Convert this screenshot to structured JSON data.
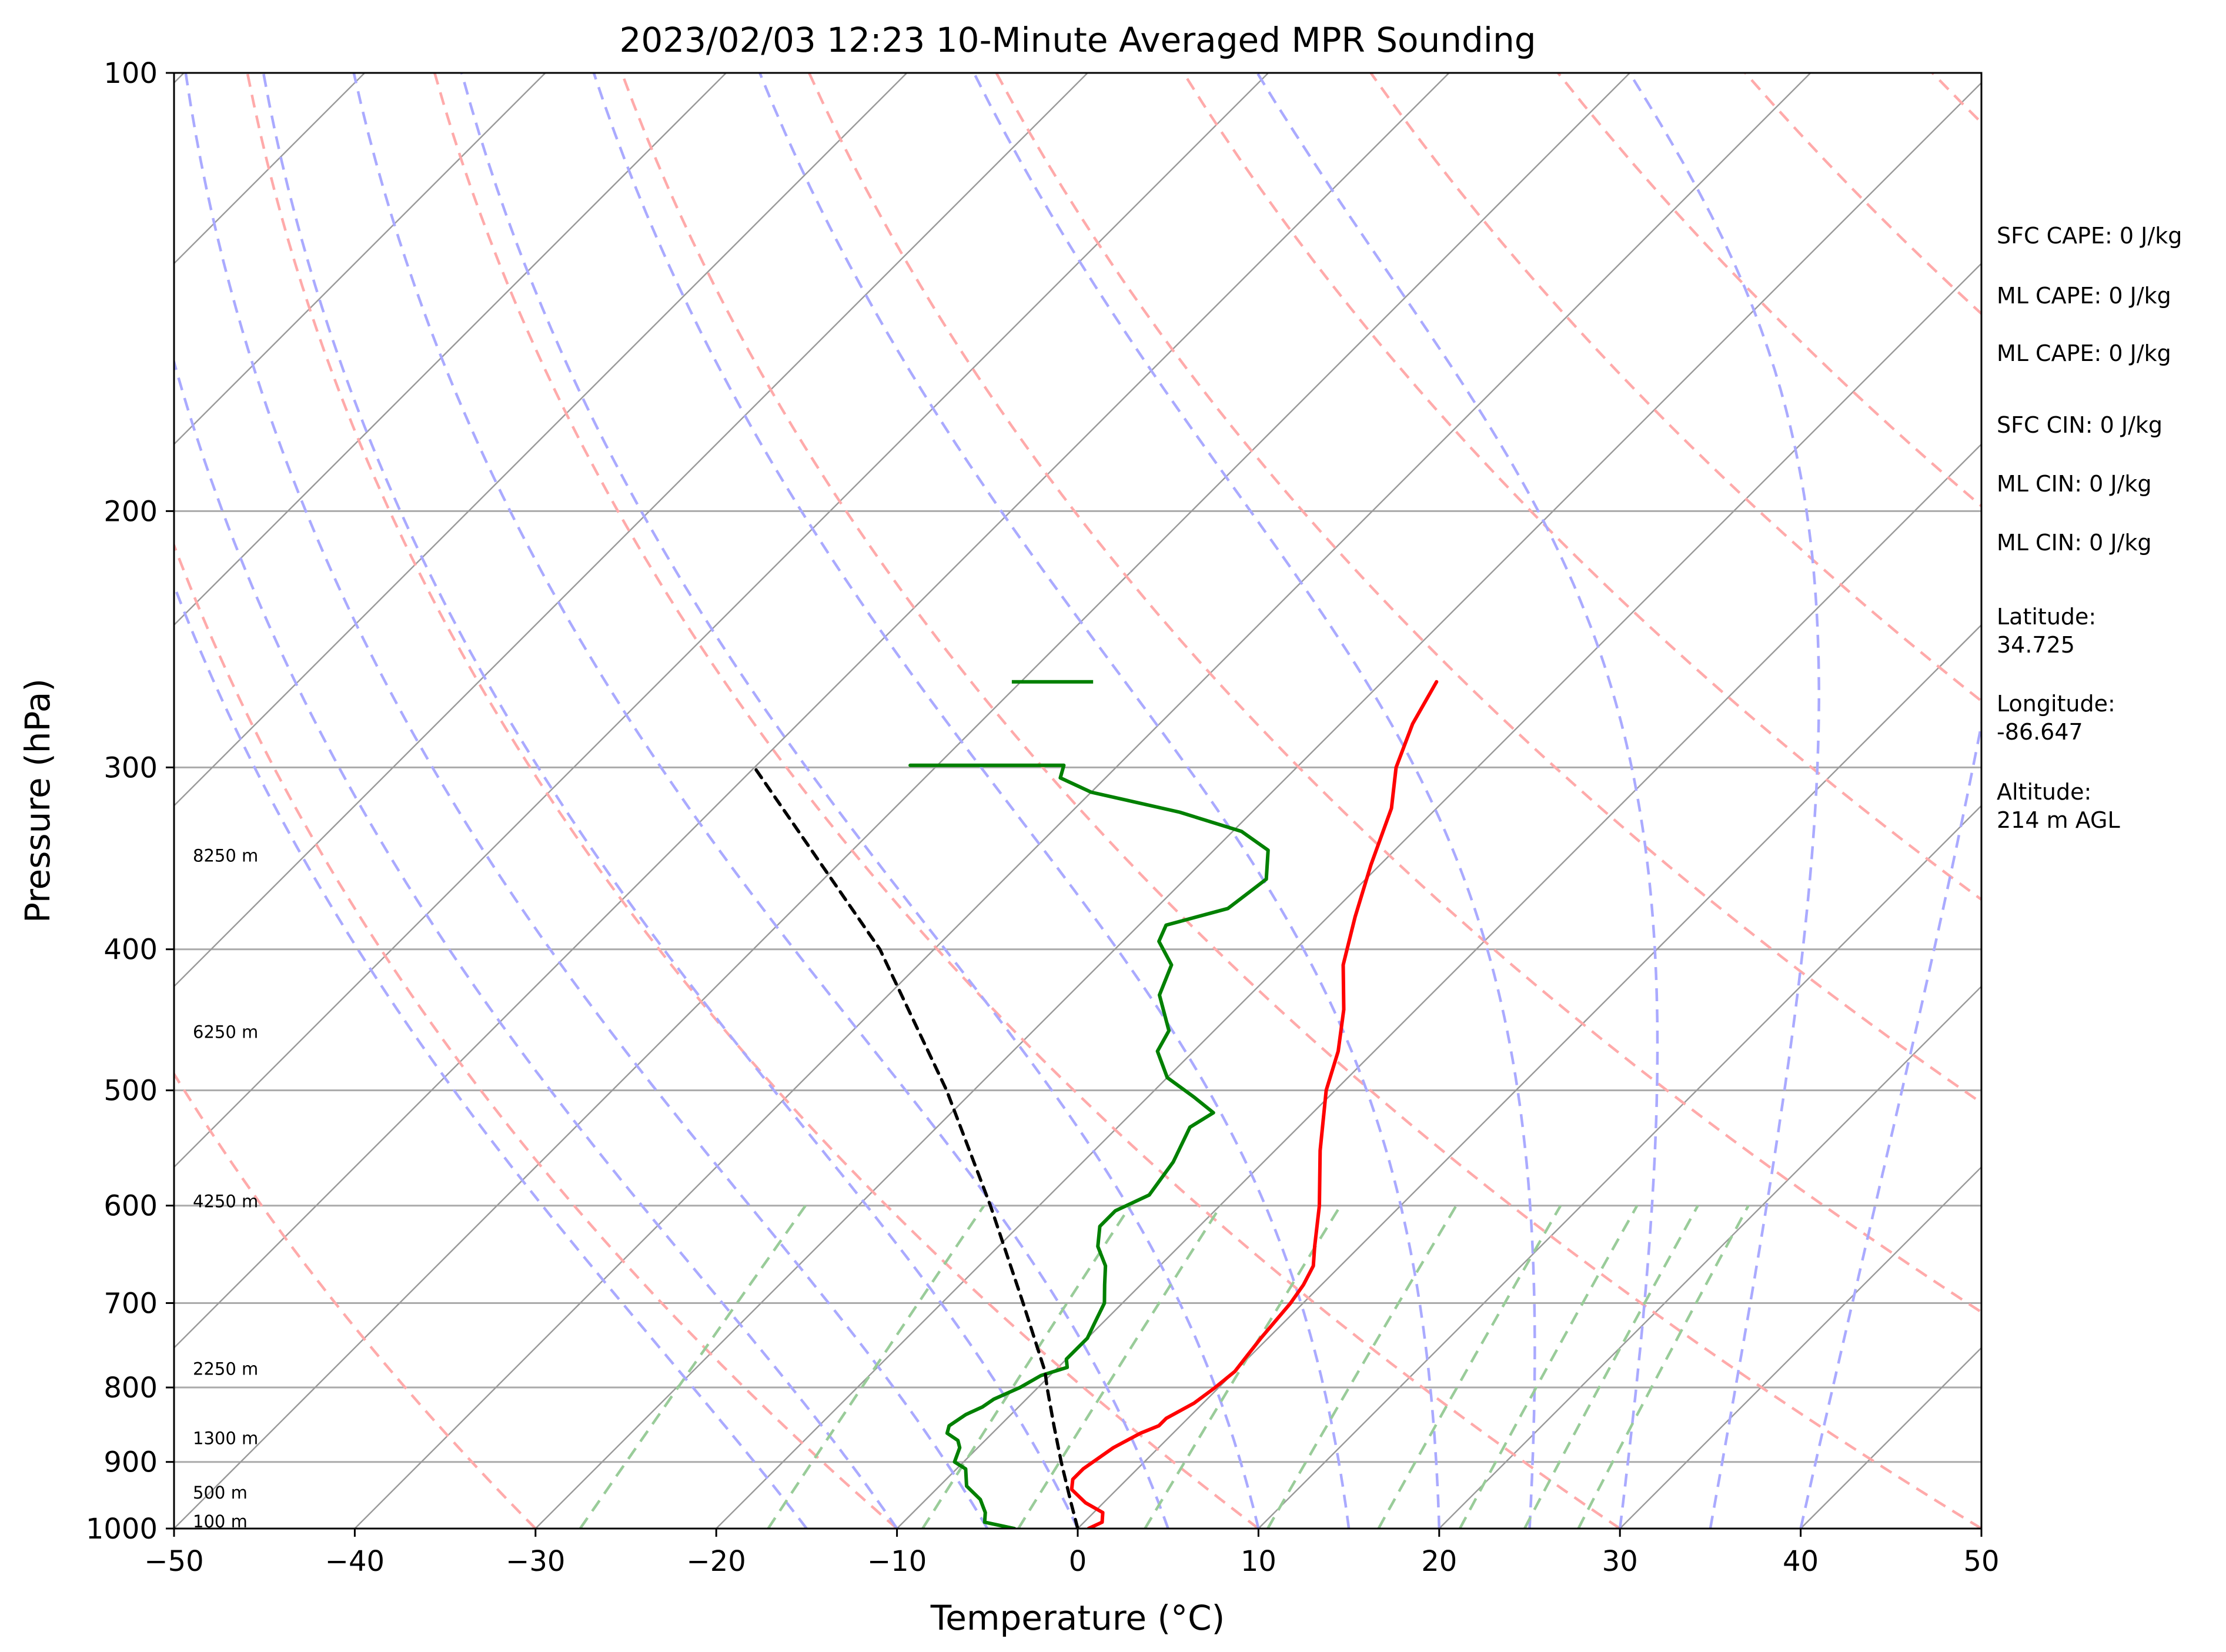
{
  "chart_data": {
    "type": "line",
    "subtype": "skew-t log-p sounding",
    "title": "2023/02/03 12:23 10-Minute Averaged MPR Sounding",
    "xlabel": "Temperature (°C)",
    "ylabel": "Pressure (hPa)",
    "xlim": [
      -50,
      50
    ],
    "ylim": [
      1000,
      100
    ],
    "y_scale": "log",
    "skew": 45,
    "x_ticks": [
      -50,
      -40,
      -30,
      -20,
      -10,
      0,
      10,
      20,
      30,
      40,
      50
    ],
    "x_tick_labels": [
      "−50",
      "−40",
      "−30",
      "−20",
      "−10",
      "0",
      "10",
      "20",
      "30",
      "40",
      "50"
    ],
    "y_ticks": [
      1000,
      900,
      800,
      700,
      600,
      500,
      400,
      300,
      200,
      100
    ],
    "y_tick_labels": [
      "1000",
      "900",
      "800",
      "700",
      "600",
      "500",
      "400",
      "300",
      "200",
      "100"
    ],
    "grid": true,
    "series": [
      {
        "role": "temperature",
        "color": "#ff0000",
        "points": [
          [
            1000,
            0.6
          ],
          [
            990,
            1.0
          ],
          [
            975,
            0.5
          ],
          [
            960,
            -1.0
          ],
          [
            940,
            -2.5
          ],
          [
            925,
            -3.0
          ],
          [
            910,
            -3.0
          ],
          [
            880,
            -2.5
          ],
          [
            860,
            -1.8
          ],
          [
            850,
            -1.2
          ],
          [
            840,
            -1.2
          ],
          [
            820,
            -0.5
          ],
          [
            800,
            -0.2
          ],
          [
            780,
            0.0
          ],
          [
            760,
            -0.2
          ],
          [
            740,
            -0.4
          ],
          [
            700,
            -0.7
          ],
          [
            680,
            -1.0
          ],
          [
            660,
            -1.5
          ],
          [
            640,
            -2.5
          ],
          [
            600,
            -4.5
          ],
          [
            550,
            -7.5
          ],
          [
            500,
            -10.5
          ],
          [
            470,
            -12.0
          ],
          [
            440,
            -14.0
          ],
          [
            410,
            -16.5
          ],
          [
            380,
            -18.5
          ],
          [
            350,
            -20.5
          ],
          [
            320,
            -22.5
          ],
          [
            300,
            -24.5
          ],
          [
            280,
            -26.0
          ],
          [
            262,
            -27.0
          ]
        ]
      },
      {
        "role": "dewpoint",
        "color": "#008000",
        "points": [
          [
            1000,
            -3.5
          ],
          [
            990,
            -5.5
          ],
          [
            975,
            -6.0
          ],
          [
            955,
            -7.0
          ],
          [
            935,
            -8.5
          ],
          [
            910,
            -9.5
          ],
          [
            900,
            -10.5
          ],
          [
            880,
            -11.0
          ],
          [
            870,
            -11.5
          ],
          [
            860,
            -12.5
          ],
          [
            850,
            -12.8
          ],
          [
            835,
            -12.5
          ],
          [
            825,
            -12.0
          ],
          [
            815,
            -11.8
          ],
          [
            800,
            -11.0
          ],
          [
            785,
            -10.5
          ],
          [
            775,
            -9.5
          ],
          [
            765,
            -10.0
          ],
          [
            740,
            -10.0
          ],
          [
            720,
            -10.5
          ],
          [
            700,
            -11.0
          ],
          [
            680,
            -12.0
          ],
          [
            660,
            -13.0
          ],
          [
            640,
            -14.5
          ],
          [
            620,
            -15.5
          ],
          [
            605,
            -15.5
          ],
          [
            590,
            -14.5
          ],
          [
            560,
            -15.0
          ],
          [
            530,
            -16.0
          ],
          [
            518,
            -15.5
          ],
          [
            505,
            -17.5
          ],
          [
            490,
            -20.0
          ],
          [
            470,
            -22.0
          ],
          [
            455,
            -22.5
          ],
          [
            430,
            -25.0
          ],
          [
            410,
            -26.0
          ],
          [
            395,
            -28.0
          ],
          [
            385,
            -28.5
          ],
          [
            375,
            -26.0
          ],
          [
            358,
            -25.5
          ],
          [
            342,
            -27.0
          ],
          [
            332,
            -29.5
          ],
          [
            322,
            -34.0
          ],
          [
            312,
            -40.0
          ],
          [
            305,
            -42.5
          ],
          [
            299,
            -43.0
          ],
          [
            299,
            -51.5
          ]
        ],
        "upper_segment": [
          [
            262,
            -50.5
          ],
          [
            262,
            -46.0
          ]
        ]
      },
      {
        "role": "parcel path",
        "color": "#000000",
        "style": "dashed",
        "points": [
          [
            1000,
            0.0
          ],
          [
            960,
            -1.8
          ],
          [
            900,
            -4.6
          ],
          [
            850,
            -7.0
          ],
          [
            800,
            -9.5
          ],
          [
            780,
            -10.5
          ],
          [
            700,
            -15.5
          ],
          [
            600,
            -22.7
          ],
          [
            500,
            -31.5
          ],
          [
            400,
            -43.0
          ],
          [
            300,
            -60.0
          ]
        ]
      }
    ],
    "dry_adiabats_c": [
      -30,
      -10,
      10,
      30,
      50,
      70,
      90,
      110,
      130,
      150,
      170,
      190
    ],
    "moist_adiabats_c": [
      -15,
      -10,
      -5,
      0,
      5,
      10,
      15,
      20,
      25,
      30,
      35,
      40
    ],
    "mixing_ratios_gkg": [
      0.4,
      1,
      2,
      3,
      5,
      8,
      12,
      16,
      20,
      24
    ],
    "height_labels": [
      {
        "text": "100 m",
        "pressure": 989
      },
      {
        "text": "500 m",
        "pressure": 945
      },
      {
        "text": "1300 m",
        "pressure": 867
      },
      {
        "text": "2250 m",
        "pressure": 777
      },
      {
        "text": "4250 m",
        "pressure": 596
      },
      {
        "text": "6250 m",
        "pressure": 456
      },
      {
        "text": "8250 m",
        "pressure": 345
      }
    ],
    "colors": {
      "dry_adiabat": "#ffaaaa",
      "moist_adiabat": "#aaaaff",
      "mixing_ratio": "#99cc99",
      "isotherm": "#999999",
      "isobar": "#aaaaaa"
    }
  },
  "info": {
    "sfc_cape": "SFC CAPE: 0 J/kg",
    "ml_cape_1": "ML CAPE: 0 J/kg",
    "ml_cape_2": "ML CAPE: 0 J/kg",
    "sfc_cin": "SFC CIN: 0 J/kg",
    "ml_cin_1": "ML CIN: 0 J/kg",
    "ml_cin_2": "ML CIN: 0 J/kg",
    "latitude_label": "Latitude:",
    "latitude_value": "34.725",
    "longitude_label": "Longitude:",
    "longitude_value": "-86.647",
    "altitude_label": "Altitude:",
    "altitude_value": "214 m AGL"
  }
}
